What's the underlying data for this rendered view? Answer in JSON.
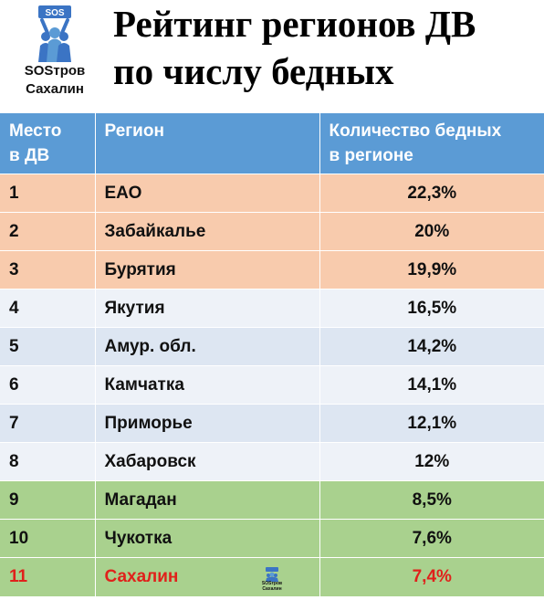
{
  "logo": {
    "badge_text": "SOS",
    "line1": "SOSтров",
    "line2": "Сахалин",
    "icon": "people-arms-up-icon"
  },
  "title": {
    "line1": "Рейтинг регионов ДВ",
    "line2": "по числу бедных"
  },
  "table": {
    "headers": {
      "place_line1": "Место",
      "place_line2": "в ДВ",
      "region": "Регион",
      "count_line1": "Количество бедных",
      "count_line2": "в регионе"
    },
    "rows": [
      {
        "place": "1",
        "region": "ЕАО",
        "value": "22,3%"
      },
      {
        "place": "2",
        "region": "Забайкалье",
        "value": "20%"
      },
      {
        "place": "3",
        "region": "Бурятия",
        "value": "19,9%"
      },
      {
        "place": "4",
        "region": "Якутия",
        "value": "16,5%"
      },
      {
        "place": "5",
        "region": "Амур. обл.",
        "value": "14,2%"
      },
      {
        "place": "6",
        "region": "Камчатка",
        "value": "14,1%"
      },
      {
        "place": "7",
        "region": "Приморье",
        "value": "12,1%"
      },
      {
        "place": "8",
        "region": "Хабаровск",
        "value": "12%"
      },
      {
        "place": "9",
        "region": "Магадан",
        "value": "8,5%"
      },
      {
        "place": "10",
        "region": "Чукотка",
        "value": "7,6%"
      },
      {
        "place": "11",
        "region": "Сахалин",
        "value": "7,4%"
      }
    ],
    "row_logo": {
      "line1": "SOSтров",
      "line2": "Сахалин"
    }
  },
  "colors": {
    "header_bg": "#5b9bd5",
    "top_tier_bg": "#f8cbad",
    "mid_tier_bg": "#dde6f2",
    "low_tier_bg": "#a9d18e",
    "highlight_text": "#e0211b",
    "logo_blue": "#3b74c4"
  }
}
